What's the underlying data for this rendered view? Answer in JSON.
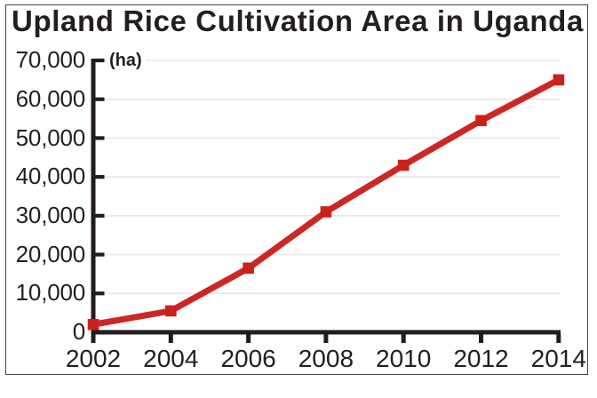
{
  "chart_data": {
    "type": "line",
    "title": "Upland Rice Cultivation Area in Uganda",
    "unit_label": "(ha)",
    "xlabel": "",
    "ylabel": "(ha)",
    "x": [
      2002,
      2004,
      2006,
      2008,
      2010,
      2012,
      2014
    ],
    "series": [
      {
        "name": "Upland rice cultivation area (ha)",
        "values": [
          2000,
          5500,
          16500,
          31000,
          43000,
          54500,
          65000
        ]
      }
    ],
    "xlim": [
      2002,
      2014
    ],
    "ylim": [
      0,
      70000
    ],
    "xticks": [
      {
        "value": 2002,
        "label": "2002"
      },
      {
        "value": 2004,
        "label": "2004"
      },
      {
        "value": 2006,
        "label": "2006"
      },
      {
        "value": 2008,
        "label": "2008"
      },
      {
        "value": 2010,
        "label": "2010"
      },
      {
        "value": 2012,
        "label": "2012"
      },
      {
        "value": 2014,
        "label": "2014"
      }
    ],
    "yticks": [
      {
        "value": 0,
        "label": "0"
      },
      {
        "value": 10000,
        "label": "10,000"
      },
      {
        "value": 20000,
        "label": "20,000"
      },
      {
        "value": 30000,
        "label": "30,000"
      },
      {
        "value": 40000,
        "label": "40,000"
      },
      {
        "value": 50000,
        "label": "50,000"
      },
      {
        "value": 60000,
        "label": "60,000"
      },
      {
        "value": 70000,
        "label": "70,000"
      }
    ],
    "grid": "horizontal",
    "legend": "none",
    "marker": "square",
    "colors": {
      "line": "#cd2724",
      "marker": "#cb211e",
      "axis": "#231c1d",
      "text": "#231f20",
      "grid": "#e8e8e8",
      "border": "#464646",
      "background": "#ffffff"
    }
  }
}
